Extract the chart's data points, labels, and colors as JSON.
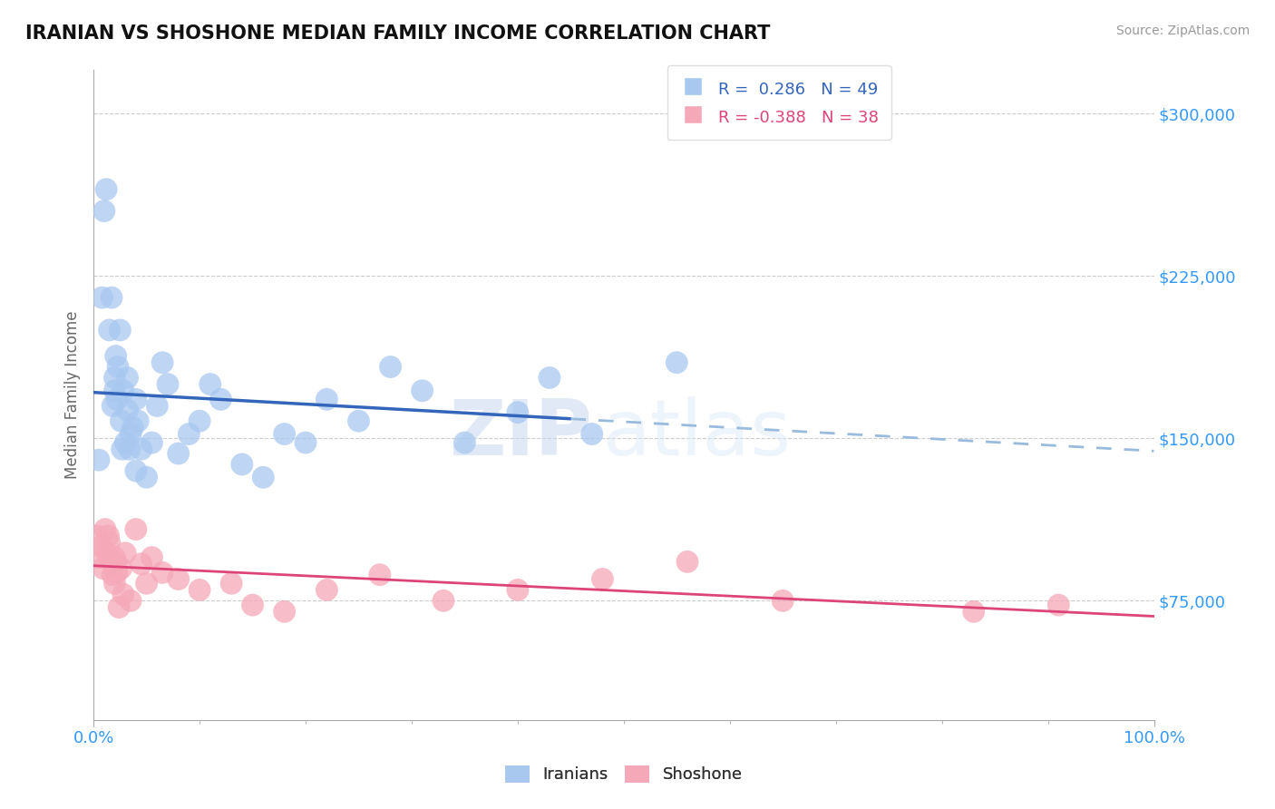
{
  "title": "IRANIAN VS SHOSHONE MEDIAN FAMILY INCOME CORRELATION CHART",
  "source_text": "Source: ZipAtlas.com",
  "ylabel": "Median Family Income",
  "xlim": [
    0.0,
    100.0
  ],
  "ylim": [
    20000,
    320000
  ],
  "yticks": [
    75000,
    150000,
    225000,
    300000
  ],
  "background_color": "#ffffff",
  "grid_color": "#cccccc",
  "iranians_color": "#a8c8f0",
  "iranians_line_color": "#3366bb",
  "iranians_dash_color": "#99bbdd",
  "shoshone_color": "#f5a8b8",
  "shoshone_line_color": "#dd4477",
  "R_iranians": 0.286,
  "N_iranians": 49,
  "R_shoshone": -0.388,
  "N_shoshone": 38,
  "watermark_zip": "ZIP",
  "watermark_atlas": "atlas",
  "legend_iranians": "Iranians",
  "legend_shoshone": "Shoshone",
  "iranians_x": [
    0.5,
    0.8,
    1.0,
    1.2,
    1.5,
    1.7,
    1.8,
    2.0,
    2.0,
    2.1,
    2.2,
    2.3,
    2.5,
    2.6,
    2.7,
    2.8,
    3.0,
    3.2,
    3.2,
    3.4,
    3.5,
    3.7,
    4.0,
    4.0,
    4.2,
    4.5,
    5.0,
    5.5,
    6.0,
    6.5,
    7.0,
    8.0,
    9.0,
    10.0,
    11.0,
    12.0,
    14.0,
    16.0,
    18.0,
    20.0,
    22.0,
    25.0,
    28.0,
    31.0,
    35.0,
    40.0,
    43.0,
    47.0,
    55.0
  ],
  "iranians_y": [
    140000,
    215000,
    255000,
    265000,
    200000,
    215000,
    165000,
    178000,
    172000,
    188000,
    168000,
    183000,
    200000,
    158000,
    145000,
    172000,
    148000,
    163000,
    178000,
    145000,
    152000,
    155000,
    135000,
    168000,
    158000,
    145000,
    132000,
    148000,
    165000,
    185000,
    175000,
    143000,
    152000,
    158000,
    175000,
    168000,
    138000,
    132000,
    152000,
    148000,
    168000,
    158000,
    183000,
    172000,
    148000,
    162000,
    178000,
    152000,
    185000
  ],
  "shoshone_x": [
    0.3,
    0.5,
    0.7,
    0.9,
    1.1,
    1.3,
    1.4,
    1.5,
    1.7,
    1.8,
    2.0,
    2.0,
    2.1,
    2.2,
    2.4,
    2.6,
    2.8,
    3.0,
    3.5,
    4.0,
    4.5,
    5.0,
    5.5,
    6.5,
    8.0,
    10.0,
    13.0,
    15.0,
    18.0,
    22.0,
    27.0,
    33.0,
    40.0,
    48.0,
    56.0,
    65.0,
    83.0,
    91.0
  ],
  "shoshone_y": [
    105000,
    95000,
    100000,
    90000,
    108000,
    97000,
    105000,
    102000,
    93000,
    87000,
    83000,
    95000,
    93000,
    88000,
    72000,
    90000,
    78000,
    97000,
    75000,
    108000,
    92000,
    83000,
    95000,
    88000,
    85000,
    80000,
    83000,
    73000,
    70000,
    80000,
    87000,
    75000,
    80000,
    85000,
    93000,
    75000,
    70000,
    73000
  ]
}
